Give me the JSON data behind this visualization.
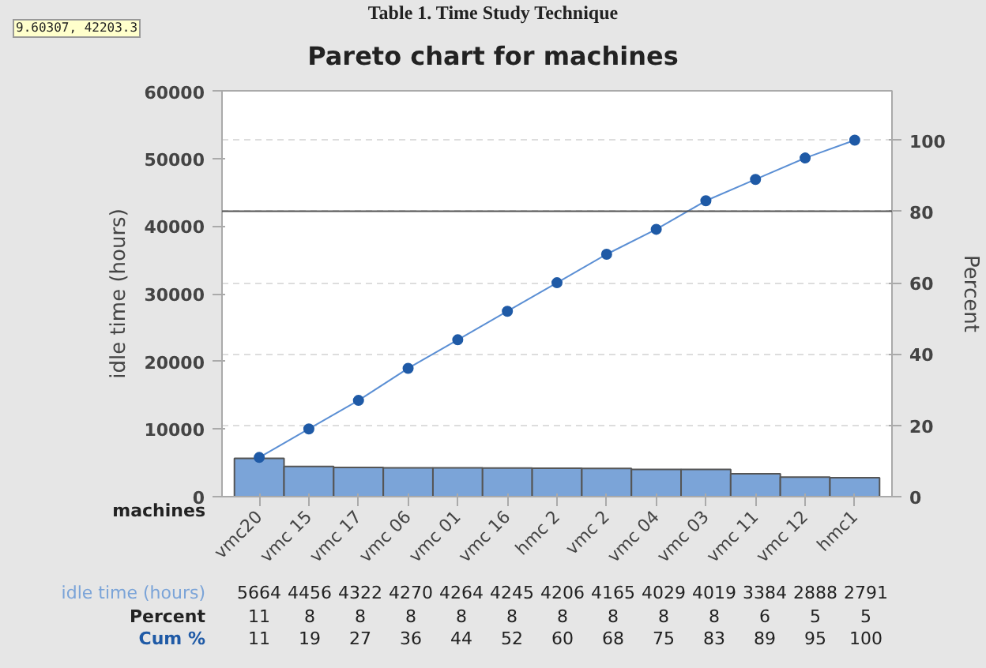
{
  "chart_data": {
    "type": "bar",
    "title": "Pareto chart for machines",
    "xlabel": "machines",
    "ylabel": "idle time (hours)",
    "y2label": "Percent",
    "categories": [
      "vmc20",
      "vmc 15",
      "vmc 17",
      "vmc 06",
      "vmc 01",
      "vmc 16",
      "hmc 2",
      "vmc 2",
      "vmc 04",
      "vmc 03",
      "vmc 11",
      "vmc 12",
      "hmc1"
    ],
    "series": [
      {
        "name": "idle time (hours)",
        "color": "#7ba4d8",
        "values": [
          5664,
          4456,
          4322,
          4270,
          4264,
          4245,
          4206,
          4165,
          4029,
          4019,
          3384,
          2888,
          2791
        ]
      },
      {
        "name": "Cum %",
        "type": "line",
        "axis": "y2",
        "color": "#1f5aa6",
        "values": [
          11,
          19,
          27,
          36,
          44,
          52,
          60,
          68,
          75,
          83,
          89,
          95,
          100
        ]
      }
    ],
    "annotations": [
      "Table 1. Time Study Technique",
      "9.60307, 42203.3",
      "Percent",
      "11",
      "8",
      "8",
      "8",
      "8",
      "8",
      "8",
      "8",
      "8",
      "8",
      "6",
      "5",
      "5"
    ],
    "ylim": [
      0,
      60000
    ],
    "yticks": [
      0,
      10000,
      20000,
      30000,
      40000,
      50000,
      60000
    ],
    "y2lim": [
      0,
      113.85
    ],
    "y2ticks": [
      0,
      20,
      40,
      60,
      80,
      100
    ],
    "ref_lines": [
      {
        "axis": "y",
        "value": 42203.3,
        "color": "#555555"
      }
    ],
    "data_labels": true,
    "grid": "y2",
    "marker": "circle",
    "line_style": "solid"
  }
}
